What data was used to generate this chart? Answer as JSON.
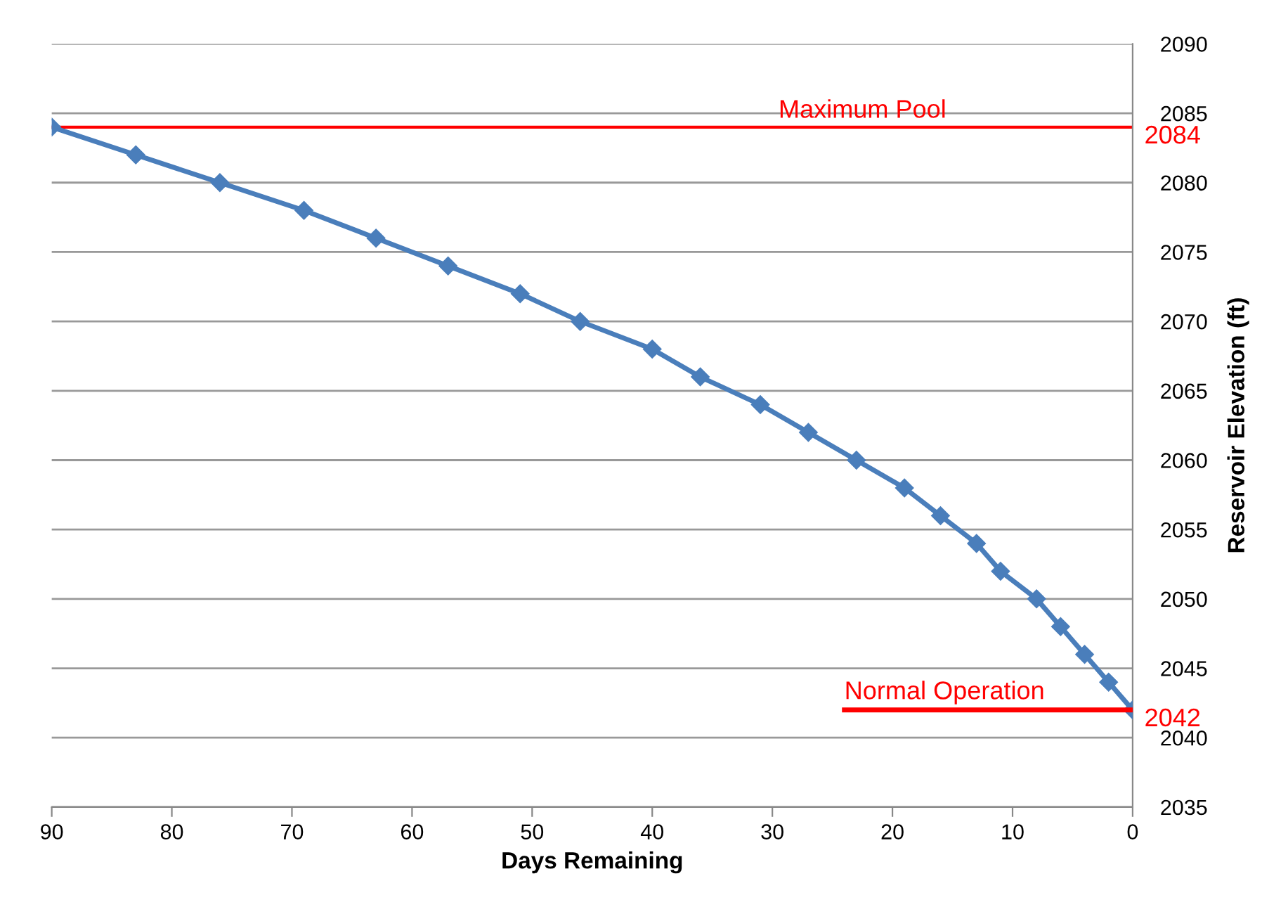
{
  "chart_data": {
    "type": "line",
    "xlabel": "Days Remaining",
    "ylabel": "Reservoir Elevation (ft)",
    "x": [
      90,
      83,
      76,
      69,
      63,
      57,
      51,
      46,
      40,
      36,
      31,
      27,
      23,
      19,
      16,
      13,
      11,
      8,
      6,
      4,
      2,
      0
    ],
    "series": [
      {
        "color": "#4a7ebb",
        "marker": "diamond",
        "values": [
          2084,
          2082,
          2080,
          2078,
          2076,
          2074,
          2072,
          2070,
          2068,
          2066,
          2064,
          2062,
          2060,
          2058,
          2056,
          2054,
          2052,
          2050,
          2048,
          2046,
          2044,
          2042
        ]
      },
      {
        "name": "Normal Operation",
        "color": "#ff0000",
        "marker": "none",
        "x": [
          24,
          0
        ],
        "values": [
          2042,
          2042
        ]
      }
    ],
    "ref_lines": [
      {
        "axis": "y",
        "value": 2084,
        "label": "Maximum Pool",
        "color": "#ff0000"
      }
    ],
    "annotations": [
      {
        "text": "2084",
        "x": 0,
        "y": 2084
      },
      {
        "text": "2042",
        "x": 0,
        "y": 2042
      }
    ],
    "xlim": [
      90,
      0
    ],
    "xticks": [
      90,
      80,
      70,
      60,
      50,
      40,
      30,
      20,
      10,
      0
    ],
    "ylim": [
      2035,
      2090
    ],
    "yticks": [
      2035,
      2040,
      2045,
      2050,
      2055,
      2060,
      2065,
      2070,
      2075,
      2080,
      2085,
      2090
    ],
    "grid": "y",
    "legend": false
  }
}
